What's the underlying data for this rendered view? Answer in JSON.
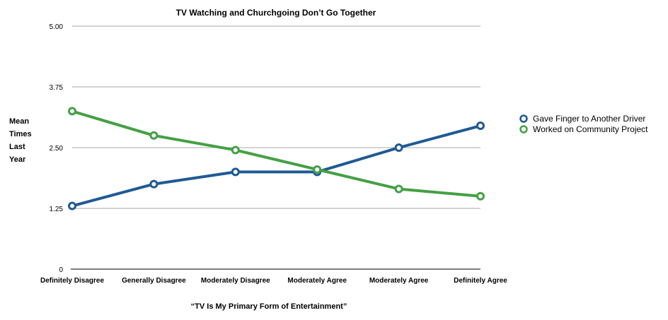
{
  "chart_data": {
    "type": "line",
    "title": "TV Watching and Churchgoing Don’t Go Together",
    "xlabel": "“TV Is My Primary Form of Entertainment”",
    "ylabel": [
      "Mean",
      "Times",
      "Last",
      "Year"
    ],
    "categories": [
      "Definitely Disagree",
      "Generally Disagree",
      "Moderately Disagree",
      "Moderately Agree",
      "Moderately Agree",
      "Definitely Agree"
    ],
    "ylim": [
      0,
      5
    ],
    "yticks": [
      0,
      1.25,
      2.5,
      3.75,
      5
    ],
    "ytick_labels": [
      "0",
      "1.25",
      "2.50",
      "3.75",
      "5.00"
    ],
    "grid": true,
    "legend_position": "right",
    "series": [
      {
        "name": "Gave Finger to Another Driver",
        "color": "#1f5a94",
        "values": [
          1.3,
          1.75,
          2.0,
          2.0,
          2.5,
          2.95
        ]
      },
      {
        "name": "Worked on Community Project",
        "color": "#44a044",
        "values": [
          3.25,
          2.75,
          2.45,
          2.05,
          1.65,
          1.5
        ]
      }
    ]
  }
}
